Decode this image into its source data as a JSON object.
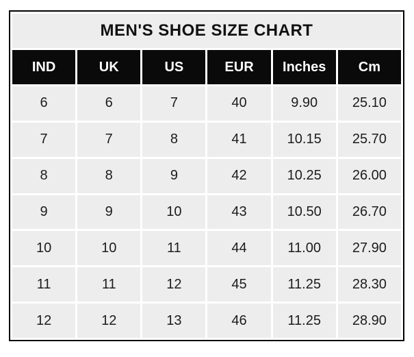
{
  "chart_data": {
    "type": "table",
    "title": "MEN'S SHOE SIZE CHART",
    "columns": [
      "IND",
      "UK",
      "US",
      "EUR",
      "Inches",
      "Cm"
    ],
    "rows": [
      [
        "6",
        "6",
        "7",
        "40",
        "9.90",
        "25.10"
      ],
      [
        "7",
        "7",
        "8",
        "41",
        "10.15",
        "25.70"
      ],
      [
        "8",
        "8",
        "9",
        "42",
        "10.25",
        "26.00"
      ],
      [
        "9",
        "9",
        "10",
        "43",
        "10.50",
        "26.70"
      ],
      [
        "10",
        "10",
        "11",
        "44",
        "11.00",
        "27.90"
      ],
      [
        "11",
        "11",
        "12",
        "45",
        "11.25",
        "28.30"
      ],
      [
        "12",
        "12",
        "13",
        "46",
        "11.25",
        "28.90"
      ]
    ],
    "layout_hints": {
      "title_position": "top-band",
      "grid": "white gaps between cells",
      "header_style": "black background, white bold text"
    }
  },
  "colors": {
    "header_bg": "#0a0a0a",
    "header_text": "#ffffff",
    "cell_bg": "#ededed",
    "grid": "#ffffff",
    "border": "#000000",
    "text": "#1c1c1c",
    "title_text": "#111111",
    "page_bg": "#ffffff"
  }
}
